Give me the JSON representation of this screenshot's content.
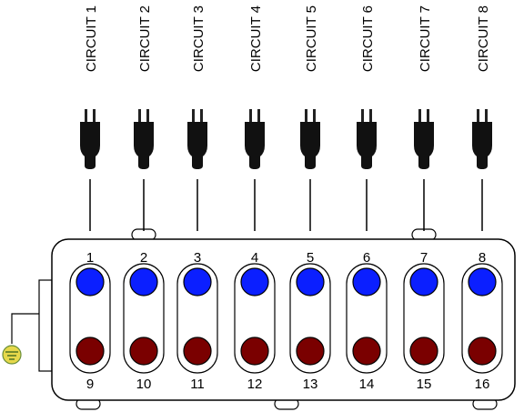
{
  "circuits": [
    {
      "label": "CIRCUIT 1",
      "top": 1,
      "bottom": 9
    },
    {
      "label": "CIRCUIT 2",
      "top": 2,
      "bottom": 10
    },
    {
      "label": "CIRCUIT 3",
      "top": 3,
      "bottom": 11
    },
    {
      "label": "CIRCUIT 4",
      "top": 4,
      "bottom": 12
    },
    {
      "label": "CIRCUIT 5",
      "top": 5,
      "bottom": 13
    },
    {
      "label": "CIRCUIT 6",
      "top": 6,
      "bottom": 14
    },
    {
      "label": "CIRCUIT 7",
      "top": 7,
      "bottom": 15
    },
    {
      "label": "CIRCUIT 8",
      "top": 8,
      "bottom": 16
    }
  ]
}
